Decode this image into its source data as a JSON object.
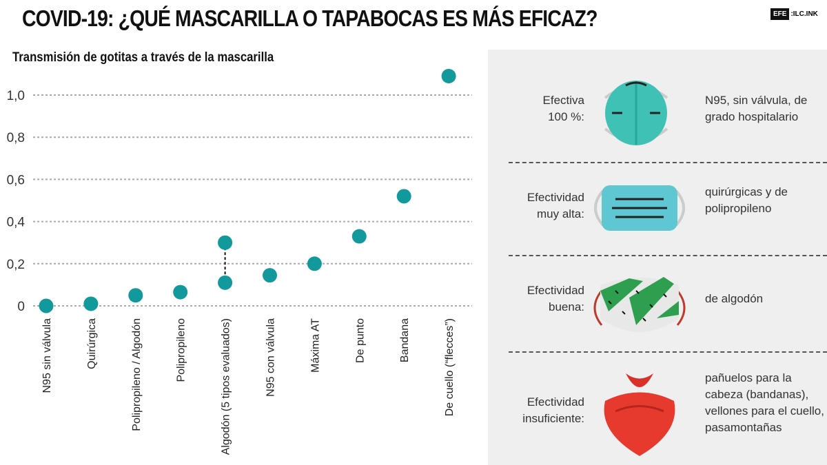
{
  "title": "COVID-19: ¿QUÉ MASCARILLA O TAPABOCAS ES MÁS EFICAZ?",
  "logo": "EFE:ILC.INK",
  "chart_data": {
    "type": "scatter",
    "title": "Transmisión de gotitas a través de la mascarilla",
    "categories": [
      "N95 sin válvula",
      "Quirúrgica",
      "Polipropileno / Algodón",
      "Polipropileno",
      "Algodón (5 tipos evaluados)",
      "N95 con válvula",
      "Máxima AT",
      "De punto",
      "Bandana",
      "De cuello (“flecces”)"
    ],
    "values": [
      [
        0
      ],
      [
        0.01
      ],
      [
        0.05
      ],
      [
        0.065
      ],
      [
        0.11,
        0.3
      ],
      [
        0.145
      ],
      [
        0.2
      ],
      [
        0.33
      ],
      [
        0.52
      ],
      [
        1.09
      ]
    ],
    "yticks": [
      0,
      0.2,
      0.4,
      0.6,
      0.8,
      1.0
    ],
    "ytick_labels": [
      "0",
      "0,2",
      "0,4",
      "0,6",
      "0,8",
      "1,0"
    ],
    "ylim": [
      0,
      1.1
    ],
    "grid": true,
    "color": "#12999b"
  },
  "panel": [
    {
      "label": "Efectiva\n100 %:",
      "desc": "N95, sin válvula, de\ngrado hospitalario"
    },
    {
      "label": "Efectividad\nmuy alta:",
      "desc": "quirúrgicas y de\npolipropileno"
    },
    {
      "label": "Efectividad\nbuena:",
      "desc": "de algodón"
    },
    {
      "label": "Efectividad\ninsuficiente:",
      "desc": "pañuelos para la\ncabeza (bandanas),\nvellones para el cuello,\npasamontañas"
    }
  ]
}
